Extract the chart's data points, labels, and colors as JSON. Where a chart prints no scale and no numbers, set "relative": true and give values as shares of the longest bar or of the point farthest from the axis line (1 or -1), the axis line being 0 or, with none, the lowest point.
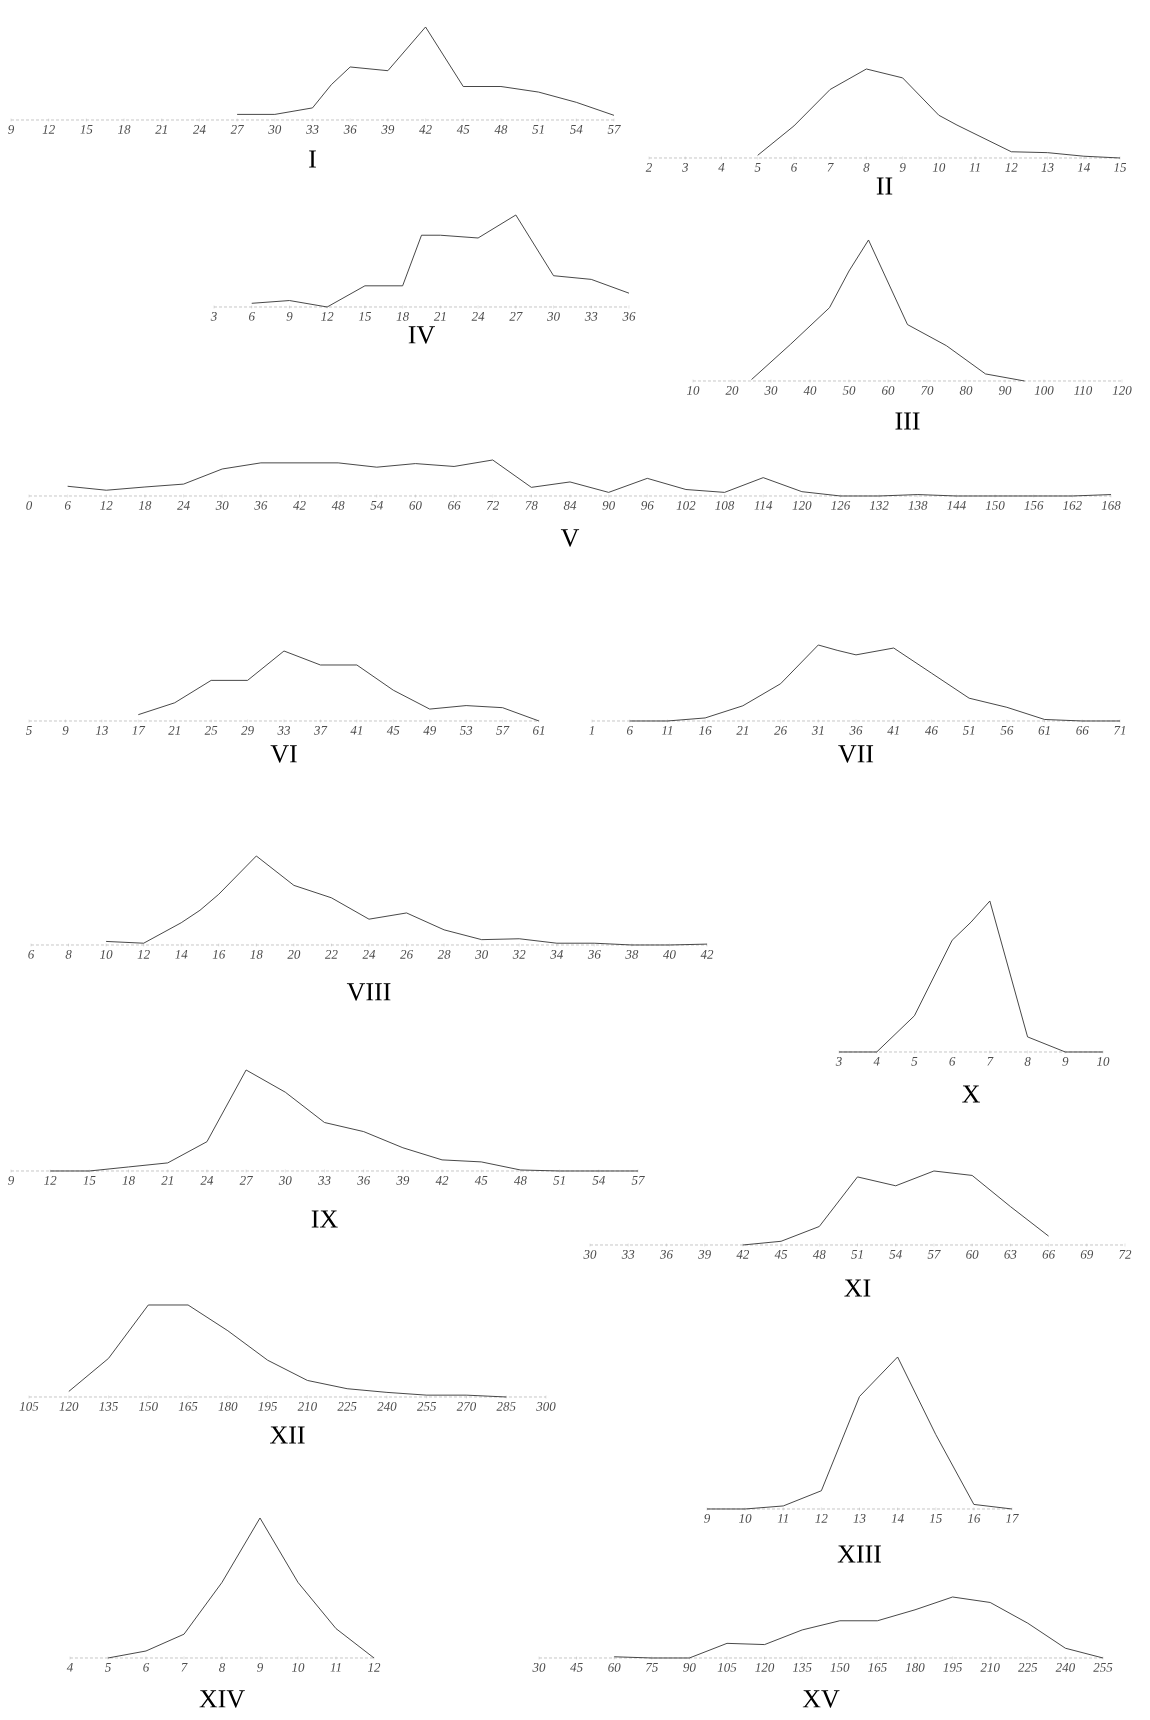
{
  "chart_data": [
    {
      "type": "line",
      "title": "I",
      "relative": true,
      "color": "#333333",
      "xlim": [
        9,
        57
      ],
      "xticks": [
        9,
        12,
        15,
        18,
        21,
        24,
        27,
        30,
        33,
        36,
        39,
        42,
        45,
        48,
        51,
        54,
        57
      ],
      "x": [
        27,
        30,
        33,
        34.5,
        36,
        37.5,
        39,
        42,
        45,
        48,
        51,
        54,
        57
      ],
      "values": [
        0.06,
        0.06,
        0.13,
        0.38,
        0.57,
        0.55,
        0.53,
        1,
        0.36,
        0.36,
        0.3,
        0.19,
        0.05
      ]
    },
    {
      "type": "line",
      "title": "II",
      "relative": true,
      "color": "#333333",
      "xlim": [
        2,
        15
      ],
      "xticks": [
        2,
        3,
        4,
        5,
        6,
        7,
        8,
        9,
        10,
        11,
        12,
        13,
        14,
        15
      ],
      "x": [
        5,
        6,
        7,
        8,
        9,
        10,
        10.5,
        12,
        13,
        14,
        15
      ],
      "values": [
        0.03,
        0.36,
        0.77,
        1,
        0.9,
        0.48,
        0.37,
        0.07,
        0.06,
        0.02,
        0
      ]
    },
    {
      "type": "line",
      "title": "IV",
      "relative": true,
      "color": "#333333",
      "xlim": [
        3,
        36
      ],
      "xticks": [
        3,
        6,
        9,
        12,
        15,
        18,
        21,
        24,
        27,
        30,
        33,
        36
      ],
      "x": [
        6,
        9,
        12,
        15,
        18,
        19.5,
        21,
        24,
        27,
        30,
        33,
        36
      ],
      "values": [
        0.04,
        0.07,
        0,
        0.23,
        0.23,
        0.78,
        0.78,
        0.75,
        1,
        0.34,
        0.3,
        0.15
      ]
    },
    {
      "type": "line",
      "title": "III",
      "relative": true,
      "color": "#333333",
      "xlim": [
        10,
        120
      ],
      "xticks": [
        10,
        20,
        30,
        40,
        50,
        60,
        70,
        80,
        90,
        100,
        110,
        120
      ],
      "x": [
        25,
        35,
        45,
        50,
        55,
        65,
        75,
        85,
        95
      ],
      "values": [
        0.01,
        0.26,
        0.52,
        0.78,
        1,
        0.4,
        0.25,
        0.05,
        0
      ]
    },
    {
      "type": "line",
      "title": "V",
      "relative": true,
      "color": "#333333",
      "xlim": [
        0,
        168
      ],
      "xticks": [
        0,
        6,
        12,
        18,
        24,
        30,
        36,
        42,
        48,
        54,
        60,
        66,
        72,
        78,
        84,
        90,
        96,
        102,
        108,
        114,
        120,
        126,
        132,
        138,
        144,
        150,
        156,
        162,
        168
      ],
      "x": [
        6,
        12,
        18,
        24,
        30,
        36,
        42,
        48,
        54,
        60,
        66,
        72,
        78,
        84,
        90,
        96,
        102,
        108,
        114,
        120,
        126,
        132,
        138,
        144,
        150,
        156,
        162,
        168
      ],
      "values": [
        0.27,
        0.16,
        0.25,
        0.33,
        0.75,
        0.92,
        0.92,
        0.92,
        0.8,
        0.9,
        0.82,
        1,
        0.24,
        0.39,
        0.1,
        0.49,
        0.18,
        0.1,
        0.51,
        0.12,
        0,
        0,
        0.04,
        0,
        0,
        0,
        0,
        0.04
      ]
    },
    {
      "type": "line",
      "title": "VI",
      "relative": true,
      "color": "#333333",
      "xlim": [
        5,
        61
      ],
      "xticks": [
        5,
        9,
        13,
        17,
        21,
        25,
        29,
        33,
        37,
        41,
        45,
        49,
        53,
        57,
        61
      ],
      "x": [
        17,
        21,
        25,
        29,
        33,
        37,
        41,
        45,
        49,
        53,
        57,
        61
      ],
      "values": [
        0.09,
        0.26,
        0.58,
        0.58,
        1,
        0.8,
        0.8,
        0.44,
        0.17,
        0.22,
        0.19,
        0
      ]
    },
    {
      "type": "line",
      "title": "VII",
      "relative": true,
      "color": "#333333",
      "xlim": [
        1,
        71
      ],
      "xticks": [
        1,
        6,
        11,
        16,
        21,
        26,
        31,
        36,
        41,
        46,
        51,
        56,
        61,
        66,
        71
      ],
      "x": [
        6,
        11,
        16,
        21,
        26,
        31,
        33.5,
        36,
        41,
        46,
        51,
        56,
        61,
        66,
        71
      ],
      "values": [
        0,
        0,
        0.04,
        0.2,
        0.49,
        1,
        0.93,
        0.87,
        0.96,
        0.63,
        0.3,
        0.18,
        0.02,
        0,
        0
      ]
    },
    {
      "type": "line",
      "title": "VIII",
      "relative": true,
      "color": "#333333",
      "xlim": [
        6,
        42
      ],
      "xticks": [
        6,
        8,
        10,
        12,
        14,
        16,
        18,
        20,
        22,
        24,
        26,
        28,
        30,
        32,
        34,
        36,
        38,
        40,
        42
      ],
      "x": [
        10,
        12,
        14,
        15,
        16,
        18,
        20,
        22,
        24,
        26,
        28,
        30,
        32,
        34,
        36,
        38,
        40,
        42
      ],
      "values": [
        0.04,
        0.02,
        0.25,
        0.39,
        0.57,
        1,
        0.67,
        0.53,
        0.29,
        0.36,
        0.17,
        0.06,
        0.07,
        0.02,
        0.02,
        0,
        0,
        0.01
      ]
    },
    {
      "type": "line",
      "title": "X",
      "relative": true,
      "color": "#333333",
      "xlim": [
        3,
        10
      ],
      "xticks": [
        3,
        4,
        5,
        6,
        7,
        8,
        9,
        10
      ],
      "x": [
        3,
        4,
        5,
        6,
        6.5,
        7,
        8,
        9,
        10
      ],
      "values": [
        0,
        0,
        0.24,
        0.74,
        0.86,
        1,
        0.1,
        0,
        0
      ]
    },
    {
      "type": "line",
      "title": "IX",
      "relative": true,
      "color": "#333333",
      "xlim": [
        9,
        57
      ],
      "xticks": [
        9,
        12,
        15,
        18,
        21,
        24,
        27,
        30,
        33,
        36,
        39,
        42,
        45,
        48,
        51,
        54,
        57
      ],
      "x": [
        12,
        15,
        18,
        21,
        24,
        27,
        30,
        33,
        36,
        39,
        42,
        45,
        48,
        51,
        54,
        57
      ],
      "values": [
        0,
        0,
        0.04,
        0.08,
        0.29,
        1,
        0.78,
        0.48,
        0.39,
        0.23,
        0.11,
        0.09,
        0.01,
        0,
        0,
        0
      ]
    },
    {
      "type": "line",
      "title": "XI",
      "relative": true,
      "color": "#333333",
      "xlim": [
        30,
        72
      ],
      "xticks": [
        30,
        33,
        36,
        39,
        42,
        45,
        48,
        51,
        54,
        57,
        60,
        63,
        66,
        69,
        72
      ],
      "x": [
        42,
        45,
        48,
        51,
        54,
        57,
        60,
        63,
        66
      ],
      "values": [
        0,
        0.05,
        0.25,
        0.92,
        0.8,
        1,
        0.94,
        0.52,
        0.12
      ]
    },
    {
      "type": "line",
      "title": "XII",
      "relative": true,
      "color": "#333333",
      "xlim": [
        105,
        300
      ],
      "xticks": [
        105,
        120,
        135,
        150,
        165,
        180,
        195,
        210,
        225,
        240,
        255,
        270,
        285,
        300
      ],
      "x": [
        120,
        135,
        150,
        165,
        180,
        195,
        210,
        225,
        240,
        255,
        270,
        285
      ],
      "values": [
        0.06,
        0.42,
        1,
        1,
        0.72,
        0.4,
        0.18,
        0.09,
        0.05,
        0.02,
        0.02,
        0
      ]
    },
    {
      "type": "line",
      "title": "XIII",
      "relative": true,
      "color": "#333333",
      "xlim": [
        9,
        17
      ],
      "xticks": [
        9,
        10,
        11,
        12,
        13,
        14,
        15,
        16,
        17
      ],
      "x": [
        9,
        10,
        11,
        12,
        13,
        14,
        15,
        16,
        17
      ],
      "values": [
        0,
        0,
        0.02,
        0.12,
        0.74,
        1,
        0.49,
        0.03,
        0
      ]
    },
    {
      "type": "line",
      "title": "XIV",
      "relative": true,
      "color": "#333333",
      "xlim": [
        4,
        12
      ],
      "xticks": [
        4,
        5,
        6,
        7,
        8,
        9,
        10,
        11,
        12
      ],
      "x": [
        5,
        6,
        7,
        8,
        9,
        10,
        11,
        12
      ],
      "values": [
        0,
        0.05,
        0.17,
        0.54,
        1,
        0.54,
        0.21,
        0
      ]
    },
    {
      "type": "line",
      "title": "XV",
      "relative": true,
      "color": "#333333",
      "xlim": [
        30,
        255
      ],
      "xticks": [
        30,
        45,
        60,
        75,
        90,
        105,
        120,
        135,
        150,
        165,
        180,
        195,
        210,
        225,
        240,
        255
      ],
      "x": [
        60,
        75,
        90,
        105,
        120,
        135,
        150,
        165,
        180,
        195,
        210,
        225,
        240,
        255
      ],
      "values": [
        0.02,
        0,
        0,
        0.24,
        0.22,
        0.46,
        0.61,
        0.61,
        0.79,
        1,
        0.91,
        0.57,
        0.16,
        0
      ]
    }
  ]
}
